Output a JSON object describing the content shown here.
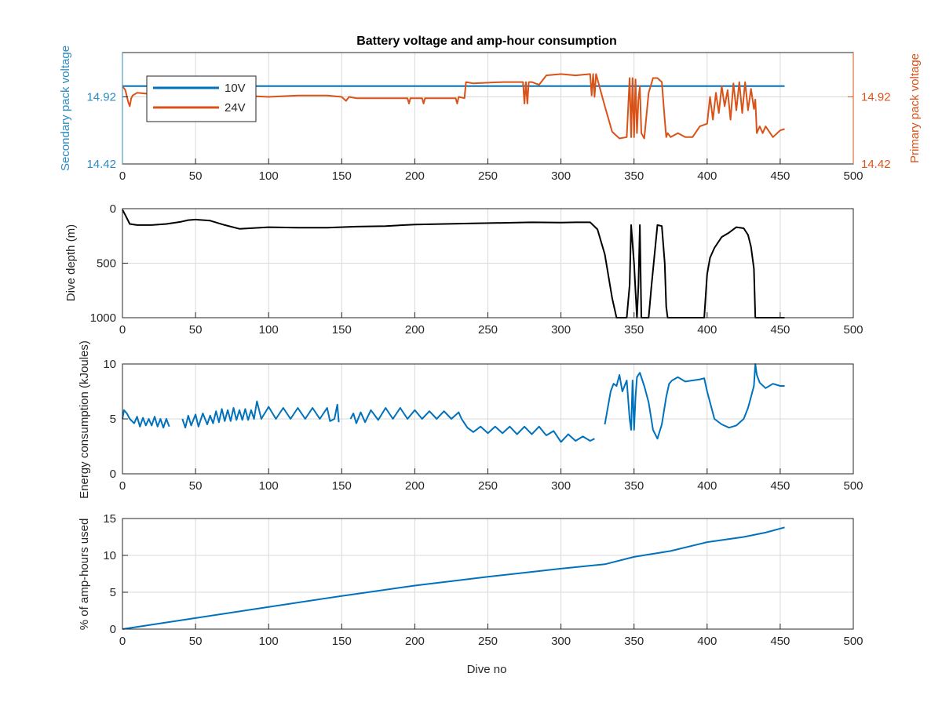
{
  "figure": {
    "title": "Battery voltage and amp-hour consumption",
    "colors": {
      "blue": "#0072BD",
      "orange": "#D95319",
      "black": "#000000",
      "left_axis": "#2E8BC0",
      "right_axis": "#D95319"
    }
  },
  "chart_data": [
    {
      "type": "line",
      "title": "Battery voltage and amp-hour consumption",
      "xlim": [
        0,
        500
      ],
      "xticks": [
        "0",
        "50",
        "100",
        "150",
        "200",
        "250",
        "300",
        "350",
        "400",
        "450",
        "500"
      ],
      "ylabel": "Secondary pack voltage",
      "ylabel_right": "Primary pack voltage",
      "ylim": [
        14.42,
        15.25
      ],
      "yticks": [
        "14.42",
        "14.92"
      ],
      "yticks_right": [
        "14.42",
        "14.92"
      ],
      "grid": true,
      "legend": {
        "placement": "top-left",
        "entries": [
          "10V",
          "24V"
        ]
      },
      "series": [
        {
          "name": "10V",
          "color": "#0072BD",
          "x": [
            0,
            453
          ],
          "y": [
            15.0,
            15.0
          ]
        },
        {
          "name": "24V",
          "color": "#D95319",
          "x": [
            0,
            2,
            4,
            5,
            6,
            7,
            10,
            20,
            40,
            60,
            80,
            100,
            120,
            140,
            150,
            153,
            155,
            160,
            180,
            195,
            196,
            197,
            200,
            205,
            206,
            207,
            210,
            220,
            228,
            229,
            230,
            234,
            235,
            240,
            260,
            274,
            275,
            276,
            277,
            278,
            280,
            285,
            290,
            300,
            310,
            320,
            321,
            322,
            323,
            324,
            330,
            335,
            340,
            345,
            346,
            347,
            348,
            349,
            350,
            351,
            352,
            353,
            354,
            355,
            357,
            360,
            363,
            366,
            369,
            371,
            372,
            373,
            375,
            380,
            385,
            390,
            395,
            400,
            402,
            404,
            406,
            408,
            410,
            412,
            414,
            416,
            418,
            420,
            422,
            424,
            426,
            428,
            430,
            432,
            433,
            434,
            436,
            438,
            440,
            445,
            450,
            453
          ],
          "y": [
            15.0,
            14.97,
            14.88,
            14.85,
            14.91,
            14.93,
            14.95,
            14.94,
            14.94,
            14.94,
            14.93,
            14.92,
            14.93,
            14.93,
            14.92,
            14.89,
            14.92,
            14.91,
            14.91,
            14.91,
            14.87,
            14.91,
            14.91,
            14.91,
            14.87,
            14.91,
            14.91,
            14.91,
            14.91,
            14.87,
            14.92,
            14.91,
            15.03,
            15.02,
            15.03,
            15.03,
            14.87,
            15.03,
            14.87,
            15.03,
            15.03,
            15.01,
            15.08,
            15.09,
            15.08,
            15.09,
            14.93,
            15.09,
            14.92,
            15.09,
            14.85,
            14.66,
            14.61,
            14.62,
            14.85,
            15.06,
            14.62,
            15.06,
            14.62,
            15.05,
            14.65,
            14.9,
            15.0,
            14.65,
            14.61,
            14.95,
            15.06,
            15.06,
            15.03,
            14.75,
            14.62,
            14.65,
            14.62,
            14.65,
            14.62,
            14.62,
            14.7,
            14.72,
            14.92,
            14.75,
            14.95,
            14.8,
            15.0,
            14.85,
            14.97,
            14.75,
            15.02,
            14.82,
            15.03,
            14.8,
            15.03,
            14.82,
            14.98,
            14.83,
            14.9,
            14.65,
            14.7,
            14.65,
            14.7,
            14.62,
            14.67,
            14.68
          ]
        }
      ]
    },
    {
      "type": "line",
      "xlim": [
        0,
        500
      ],
      "xticks": [
        "0",
        "50",
        "100",
        "150",
        "200",
        "250",
        "300",
        "350",
        "400",
        "450",
        "500"
      ],
      "ylabel": "Dive depth (m)",
      "ylim": [
        0,
        1000
      ],
      "y_reversed": true,
      "yticks": [
        "0",
        "500",
        "1000"
      ],
      "grid": true,
      "series": [
        {
          "color": "#000000",
          "x": [
            0,
            2,
            5,
            10,
            20,
            30,
            40,
            45,
            50,
            60,
            70,
            80,
            100,
            120,
            140,
            160,
            180,
            200,
            220,
            240,
            260,
            280,
            300,
            310,
            320,
            325,
            330,
            335,
            338,
            340,
            345,
            347,
            348,
            350,
            352,
            353,
            354,
            355,
            360,
            362,
            366,
            369,
            371,
            372,
            373,
            375,
            380,
            385,
            390,
            395,
            398,
            400,
            402,
            405,
            410,
            415,
            420,
            425,
            428,
            430,
            432,
            433,
            435,
            440,
            445,
            450,
            453
          ],
          "y": [
            10,
            60,
            140,
            150,
            150,
            140,
            120,
            105,
            100,
            110,
            150,
            185,
            170,
            175,
            175,
            165,
            160,
            145,
            140,
            135,
            130,
            125,
            128,
            125,
            125,
            190,
            420,
            820,
            1000,
            1000,
            1000,
            700,
            150,
            500,
            1000,
            700,
            150,
            1000,
            1000,
            700,
            150,
            160,
            500,
            900,
            1000,
            1000,
            1000,
            1000,
            1000,
            1000,
            1000,
            600,
            450,
            360,
            260,
            220,
            170,
            180,
            240,
            350,
            550,
            1000,
            1000,
            1000,
            1000,
            1000,
            1000
          ]
        }
      ]
    },
    {
      "type": "line",
      "xlim": [
        0,
        500
      ],
      "xticks": [
        "0",
        "50",
        "100",
        "150",
        "200",
        "250",
        "300",
        "350",
        "400",
        "450",
        "500"
      ],
      "ylabel": "Energy consumption (kJoules)",
      "ylim": [
        0,
        10
      ],
      "yticks": [
        "0",
        "5",
        "10"
      ],
      "grid": true,
      "series": [
        {
          "color": "#0072BD",
          "segments": [
            {
              "x": [
                0,
                1,
                3,
                5,
                8,
                10,
                12,
                14,
                16,
                18,
                20,
                22,
                24,
                26,
                28,
                30,
                32
              ],
              "y": [
                5.0,
                5.8,
                5.5,
                5.0,
                4.6,
                5.2,
                4.3,
                5.1,
                4.4,
                5.0,
                4.4,
                5.2,
                4.3,
                5.0,
                4.2,
                5.0,
                4.3
              ]
            },
            {
              "x": [
                41,
                43,
                45,
                47,
                50,
                52,
                55,
                58,
                60,
                62,
                64,
                66,
                68,
                70,
                72,
                74,
                76,
                78,
                80,
                82,
                84,
                86,
                88,
                90,
                92,
                95,
                100,
                105,
                110,
                115,
                120,
                125,
                130,
                135,
                140,
                142,
                145,
                147,
                148
              ],
              "y": [
                5.0,
                4.2,
                5.3,
                4.4,
                5.4,
                4.3,
                5.5,
                4.5,
                5.3,
                4.6,
                5.7,
                4.7,
                5.9,
                4.8,
                5.8,
                4.8,
                6.0,
                4.9,
                5.8,
                4.9,
                5.9,
                4.9,
                5.8,
                5.0,
                6.6,
                5.0,
                6.1,
                5.0,
                6.0,
                5.0,
                6.0,
                5.0,
                6.0,
                5.0,
                6.0,
                4.8,
                5.0,
                6.3,
                4.7
              ]
            },
            {
              "x": [
                156,
                158,
                160,
                163,
                166,
                170,
                175,
                180,
                185,
                190,
                195,
                200,
                205,
                210,
                215,
                220,
                225,
                230,
                232,
                234,
                236,
                240,
                245,
                250,
                255,
                260,
                265,
                270,
                275,
                280,
                285,
                288,
                290,
                295,
                300,
                305,
                310,
                315,
                320,
                323
              ],
              "y": [
                5.0,
                5.5,
                4.6,
                5.6,
                4.7,
                5.8,
                4.9,
                6.0,
                5.0,
                6.0,
                5.0,
                5.8,
                5.0,
                5.7,
                5.0,
                5.7,
                5.0,
                5.6,
                5.0,
                4.6,
                4.2,
                3.8,
                4.3,
                3.7,
                4.3,
                3.7,
                4.3,
                3.6,
                4.3,
                3.6,
                4.3,
                3.8,
                3.5,
                3.9,
                2.9,
                3.6,
                3.0,
                3.4,
                3.0,
                3.2
              ]
            },
            {
              "x": [
                330,
                332,
                334,
                336,
                338,
                340,
                342,
                345,
                347,
                348,
                349,
                350,
                351,
                352,
                354,
                357,
                360,
                363,
                366,
                369,
                372,
                374,
                376,
                380,
                385,
                390,
                395,
                398,
                400,
                403,
                405,
                410,
                415,
                420,
                425,
                428,
                430,
                432,
                433,
                434,
                436,
                440,
                445,
                450,
                453
              ],
              "y": [
                4.5,
                6.0,
                7.5,
                8.2,
                8.0,
                9.0,
                7.5,
                8.5,
                5.0,
                4.0,
                8.5,
                4.0,
                7.0,
                8.8,
                9.2,
                8.0,
                6.5,
                4.0,
                3.2,
                4.5,
                7.0,
                8.2,
                8.5,
                8.8,
                8.4,
                8.5,
                8.6,
                8.7,
                7.5,
                6.0,
                5.0,
                4.5,
                4.2,
                4.4,
                5.0,
                6.0,
                7.0,
                8.0,
                10.0,
                9.0,
                8.3,
                7.8,
                8.2,
                8.0,
                8.0
              ]
            }
          ]
        }
      ]
    },
    {
      "type": "line",
      "xlim": [
        0,
        500
      ],
      "xticks": [
        "0",
        "50",
        "100",
        "150",
        "200",
        "250",
        "300",
        "350",
        "400",
        "450",
        "500"
      ],
      "xlabel": "Dive no",
      "ylabel": "% of amp-hours used",
      "ylim": [
        0,
        15
      ],
      "yticks": [
        "0",
        "5",
        "10",
        "15"
      ],
      "grid": true,
      "series": [
        {
          "color": "#0072BD",
          "x": [
            0,
            50,
            100,
            150,
            200,
            250,
            300,
            330,
            350,
            375,
            400,
            425,
            440,
            453
          ],
          "y": [
            0,
            1.5,
            3.0,
            4.5,
            5.9,
            7.1,
            8.2,
            8.8,
            9.8,
            10.6,
            11.8,
            12.5,
            13.1,
            13.8
          ]
        }
      ]
    }
  ]
}
